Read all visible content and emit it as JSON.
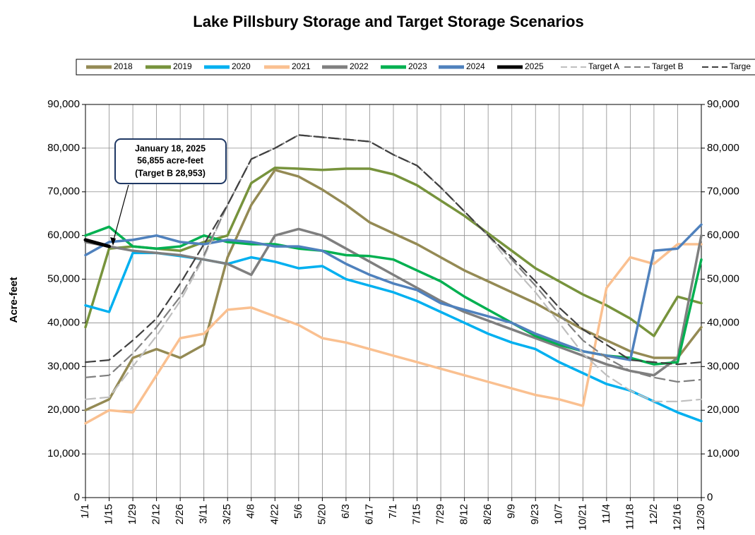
{
  "chart_data": {
    "type": "line",
    "title": "Lake Pillsbury Storage and Target Storage Scenarios",
    "y_label": "Acre-feet",
    "annotation": [
      "January 18, 2025",
      "56,855 acre-feet",
      "(Target B 28,953)"
    ],
    "categories": [
      "1/1",
      "1/15",
      "1/29",
      "2/12",
      "2/26",
      "3/11",
      "3/25",
      "4/8",
      "4/22",
      "5/6",
      "5/20",
      "6/3",
      "6/17",
      "7/1",
      "7/15",
      "7/29",
      "8/12",
      "8/26",
      "9/9",
      "9/23",
      "10/7",
      "10/21",
      "11/4",
      "11/18",
      "12/2",
      "12/16",
      "12/30"
    ],
    "ylim": [
      0,
      90000
    ],
    "yticks": [
      0,
      {
        "value": 10000,
        "label": "10,000"
      },
      {
        "value": 20000,
        "label": "20,000"
      },
      {
        "value": 30000,
        "label": "30,000"
      },
      {
        "value": 40000,
        "label": "40,000"
      },
      {
        "value": 50000,
        "label": "50,000"
      },
      {
        "value": 60000,
        "label": "60,000"
      },
      {
        "value": 70000,
        "label": "70,000"
      },
      {
        "value": 80000,
        "label": "80,000"
      },
      {
        "value": 90000,
        "label": "90,000"
      }
    ],
    "grid": true,
    "series": [
      {
        "name": "2018",
        "color": "#948a54",
        "dash": "solid",
        "values": [
          20000,
          22500,
          32000,
          34000,
          32000,
          35000,
          55000,
          67000,
          75000,
          73500,
          70500,
          67000,
          63000,
          60500,
          58000,
          55000,
          52000,
          49500,
          47000,
          44500,
          41500,
          38500,
          36000,
          33500,
          32000,
          32000,
          39000
        ]
      },
      {
        "name": "2019",
        "color": "#77933c",
        "dash": "solid",
        "values": [
          39000,
          57000,
          57500,
          57000,
          56500,
          58500,
          60000,
          72000,
          75500,
          75300,
          75000,
          75300,
          75300,
          74000,
          71500,
          68000,
          64500,
          60500,
          56500,
          52500,
          49500,
          46500,
          44000,
          41000,
          37000,
          46000,
          44500
        ]
      },
      {
        "name": "2020",
        "color": "#00b0f0",
        "dash": "solid",
        "values": [
          44000,
          42500,
          56000,
          56000,
          55300,
          54500,
          53500,
          55000,
          54000,
          52500,
          53000,
          50000,
          48500,
          47000,
          45000,
          42500,
          40000,
          37500,
          35500,
          34000,
          31000,
          28500,
          26000,
          24500,
          22000,
          19500,
          17500
        ]
      },
      {
        "name": "2021",
        "color": "#fac090",
        "dash": "solid",
        "values": [
          17000,
          20000,
          19500,
          28000,
          36500,
          37500,
          43000,
          43500,
          41500,
          39500,
          36500,
          35500,
          34000,
          32500,
          31000,
          29500,
          28000,
          26500,
          25000,
          23500,
          22500,
          21000,
          48000,
          55000,
          53500,
          58000,
          58000
        ]
      },
      {
        "name": "2022",
        "color": "#7f7f7f",
        "dash": "solid",
        "values": [
          58500,
          57500,
          56500,
          56000,
          55500,
          54500,
          53500,
          51000,
          60000,
          61500,
          60000,
          57000,
          54000,
          51000,
          48000,
          45000,
          42500,
          40500,
          38500,
          36500,
          34500,
          32500,
          30500,
          29000,
          28000,
          32000,
          60000
        ]
      },
      {
        "name": "2023",
        "color": "#00b050",
        "dash": "solid",
        "values": [
          60000,
          62000,
          57500,
          57000,
          57500,
          60000,
          58500,
          58000,
          58000,
          57000,
          56500,
          55500,
          55300,
          54500,
          52000,
          49500,
          46000,
          43000,
          40000,
          37000,
          35000,
          33500,
          32500,
          32000,
          30500,
          31000,
          54500
        ]
      },
      {
        "name": "2024",
        "color": "#4f81bd",
        "dash": "solid",
        "values": [
          55500,
          58500,
          59000,
          60000,
          58500,
          58000,
          59000,
          58500,
          57500,
          57500,
          56500,
          53500,
          51000,
          49000,
          47500,
          44500,
          43000,
          41500,
          40000,
          37500,
          35500,
          33500,
          32500,
          31500,
          56500,
          57000,
          62500
        ]
      },
      {
        "name": "2025",
        "color": "#000000",
        "dash": "solid",
        "values": [
          59000,
          57500,
          null,
          null,
          null,
          null,
          null,
          null,
          null,
          null,
          null,
          null,
          null,
          null,
          null,
          null,
          null,
          null,
          null,
          null,
          null,
          null,
          null,
          null,
          null,
          null,
          null
        ]
      },
      {
        "name": "Target A",
        "color": "#bfbfbf",
        "dash": "dashed",
        "values": [
          22500,
          23000,
          30000,
          37000,
          45000,
          55000,
          67000,
          77500,
          80000,
          83000,
          82500,
          82000,
          81500,
          78500,
          76000,
          71000,
          65500,
          60000,
          53000,
          47000,
          40000,
          33000,
          28000,
          24500,
          22000,
          22000,
          22500
        ]
      },
      {
        "name": "Target B",
        "color": "#808080",
        "dash": "dashed",
        "values": [
          27500,
          28000,
          33000,
          39000,
          46000,
          55500,
          67000,
          77500,
          80000,
          83000,
          82500,
          82000,
          81500,
          78500,
          76000,
          71000,
          65500,
          60000,
          54500,
          48500,
          42000,
          36000,
          32000,
          29000,
          27500,
          26500,
          27000
        ]
      },
      {
        "name": "Targe",
        "color": "#404040",
        "dash": "dashed",
        "values": [
          31000,
          31500,
          36000,
          41000,
          49000,
          58000,
          67000,
          77500,
          80000,
          83000,
          82500,
          82000,
          81500,
          78500,
          76000,
          71000,
          65500,
          60000,
          55000,
          49500,
          43500,
          38500,
          35000,
          31500,
          31000,
          30500,
          31000
        ]
      }
    ]
  }
}
